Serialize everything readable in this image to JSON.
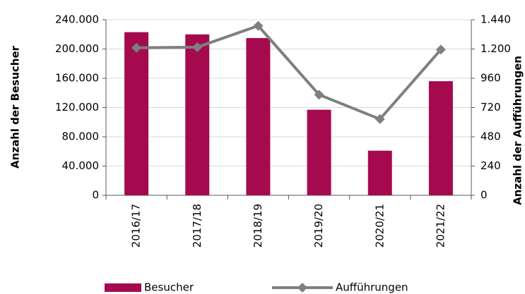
{
  "chart_data": {
    "type": "bar_line",
    "categories": [
      "2016/17",
      "2017/18",
      "2018/19",
      "2019/20",
      "2020/21",
      "2021/22"
    ],
    "series": [
      {
        "name": "Besucher",
        "type": "bar",
        "color": "#a50a4f",
        "values": [
          223000,
          220000,
          215000,
          117000,
          61000,
          156000
        ]
      },
      {
        "name": "Aufführungen",
        "type": "line",
        "axis": "y2",
        "color": "#7f7f7f",
        "values": [
          1210,
          1215,
          1390,
          825,
          625,
          1195
        ]
      }
    ],
    "ylabel": "Anzahl der Besucher",
    "y2label": "Anzahl der Aufführungen",
    "ylim": [
      0,
      240000
    ],
    "yticks": [
      0,
      {
        "value": 40000,
        "label": "40.000"
      },
      {
        "value": 80000,
        "label": "80.000"
      },
      {
        "value": 120000,
        "label": "120.000"
      },
      {
        "value": 160000,
        "label": "160.000"
      },
      {
        "value": 200000,
        "label": "200.000"
      },
      {
        "value": 240000,
        "label": "240.000"
      }
    ],
    "y2lim": [
      0,
      1440
    ],
    "y2ticks": [
      0,
      240,
      480,
      720,
      960,
      {
        "value": 1200,
        "label": "1.200"
      },
      {
        "value": 1440,
        "label": "1.440"
      }
    ],
    "grid": true,
    "legend": "bottom"
  }
}
